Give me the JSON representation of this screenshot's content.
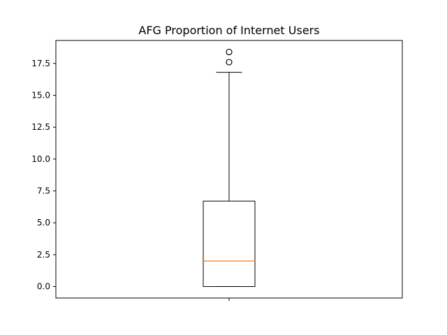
{
  "chart_data": {
    "type": "boxplot",
    "title": "AFG Proportion of Internet Users",
    "xlabel": "",
    "ylabel": "",
    "ylim": [
      -0.9,
      19.3
    ],
    "yticks": [
      0.0,
      2.5,
      5.0,
      7.5,
      10.0,
      12.5,
      15.0,
      17.5
    ],
    "ytick_labels": [
      "0.0",
      "2.5",
      "5.0",
      "7.5",
      "10.0",
      "12.5",
      "15.0",
      "17.5"
    ],
    "grid": false,
    "box": {
      "whisker_low": 0.0,
      "q1": 0.0,
      "median": 2.0,
      "q3": 6.7,
      "whisker_high": 16.8,
      "outliers": [
        17.6,
        18.4
      ]
    },
    "colors": {
      "box": "#000000",
      "median": "#ff7f0e",
      "background": "#ffffff"
    }
  }
}
